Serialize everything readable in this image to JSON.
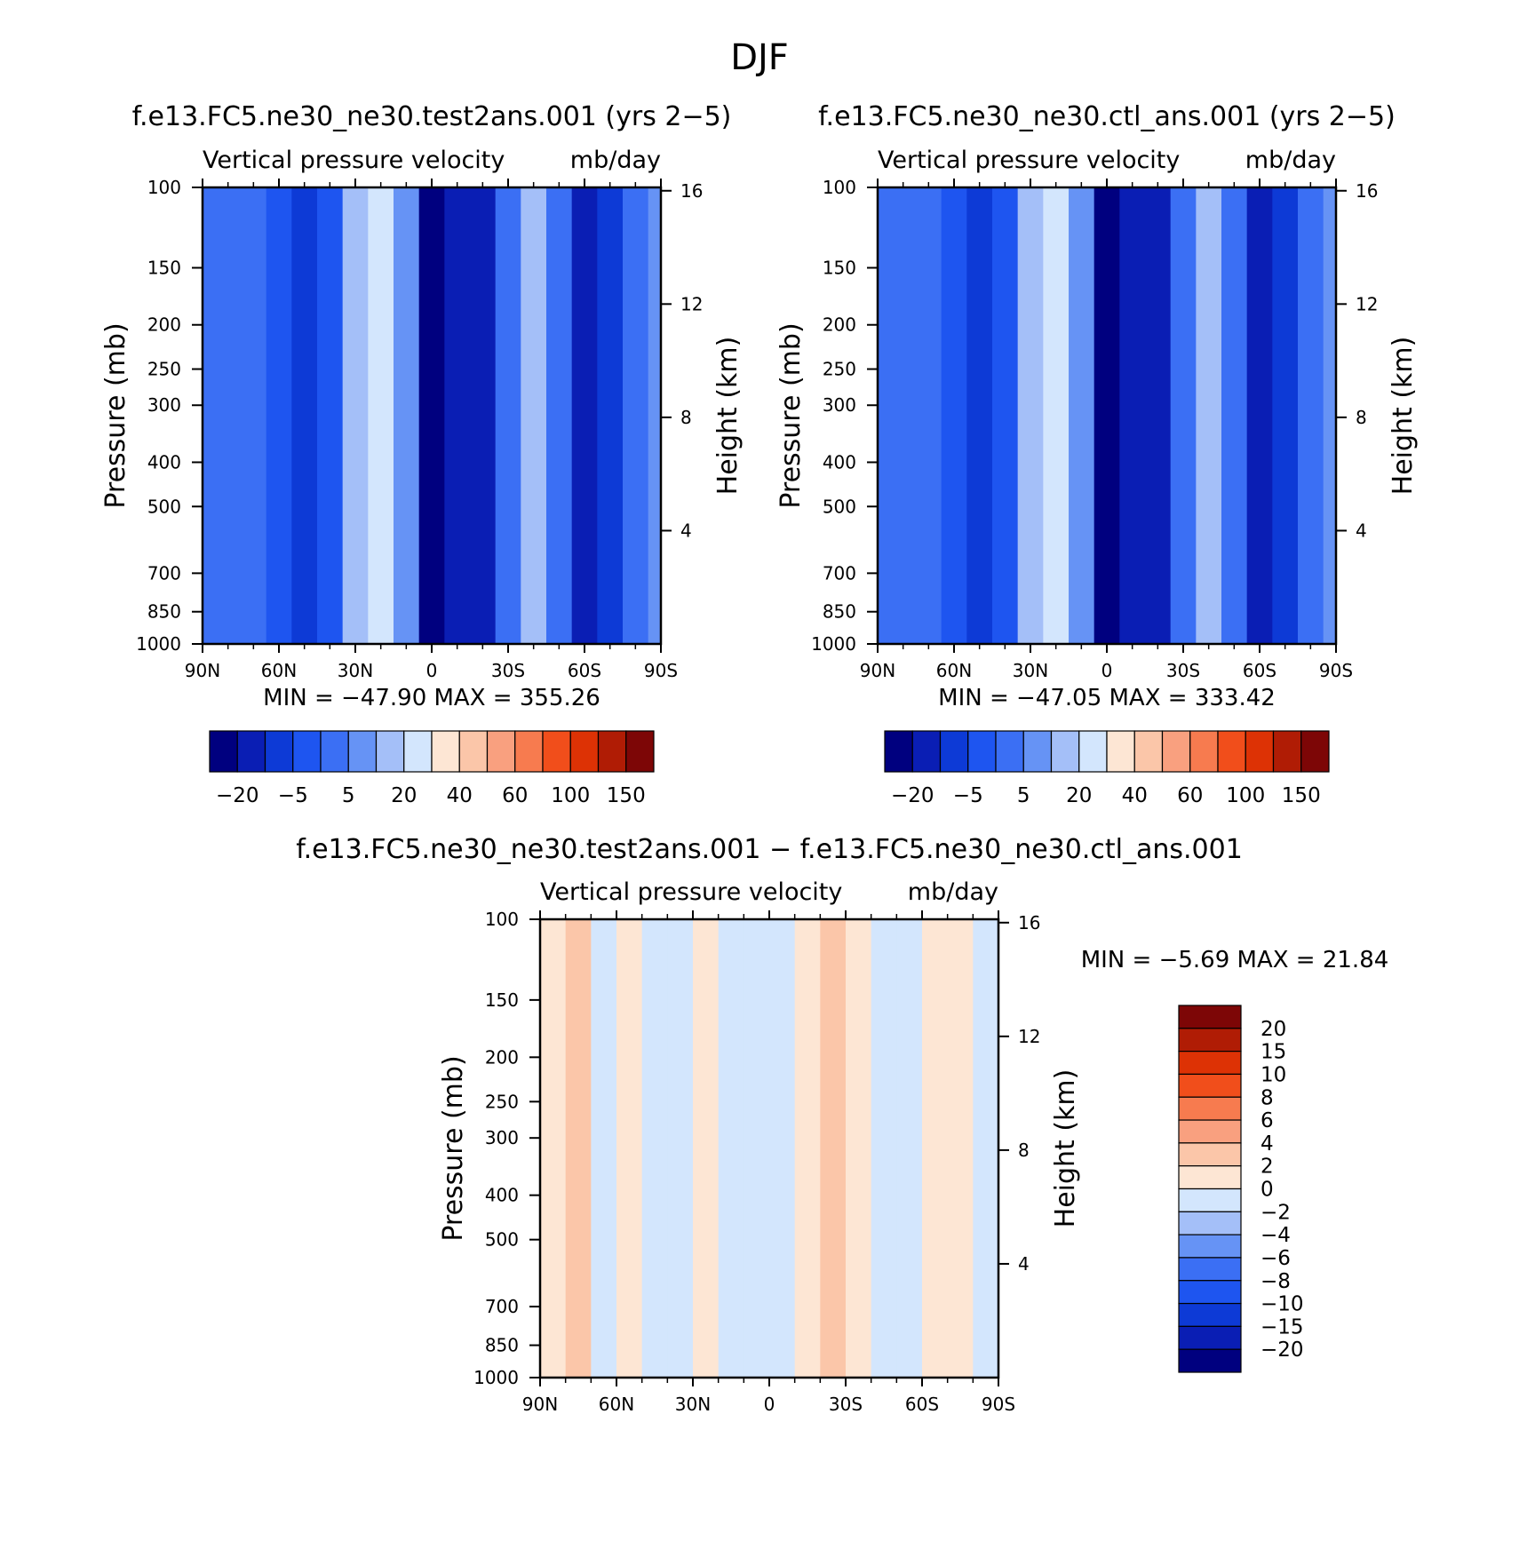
{
  "figure": {
    "title": "DJF"
  },
  "colors": {
    "abs_palette": [
      "#00007f",
      "#0a1eb4",
      "#0d3ad6",
      "#1e55f0",
      "#3b6ff4",
      "#6693f5",
      "#a4bff8",
      "#d3e6fd",
      "#fde6d4",
      "#fbc6a9",
      "#f9a07f",
      "#f77b4f",
      "#f14e1b",
      "#dd3205",
      "#b01c05",
      "#7d0606"
    ],
    "diff_palette": [
      "#7d0606",
      "#b01c05",
      "#dd3205",
      "#f14e1b",
      "#f77b4f",
      "#f9a07f",
      "#fbc6a9",
      "#fde6d4",
      "#d3e6fd",
      "#a4bff8",
      "#6693f5",
      "#3b6ff4",
      "#1e55f0",
      "#0d3ad6",
      "#0a1eb4",
      "#00007f"
    ]
  },
  "chart_data": [
    {
      "id": "test",
      "type": "heatmap",
      "title": "f.e13.FC5.ne30_ne30.test2ans.001 (yrs 2−5)",
      "subtitle_left": "Vertical pressure velocity",
      "subtitle_right": "mb/day",
      "ylabel": "Pressure (mb)",
      "y2label": "Height (km)",
      "x_ticks": [
        "90N",
        "60N",
        "30N",
        "0",
        "30S",
        "60S",
        "90S"
      ],
      "y_ticks": [
        "100",
        "150",
        "200",
        "250",
        "300",
        "400",
        "500",
        "700",
        "850",
        "1000"
      ],
      "y2_ticks": [
        "16",
        "12",
        "8",
        "4"
      ],
      "stats": "MIN =  −47.90   MAX =  355.26",
      "colorbar_labels": [
        "−20",
        "−5",
        "5",
        "20",
        "40",
        "60",
        "100",
        "150"
      ],
      "bands": [
        {
          "lat": 90,
          "level": 4
        },
        {
          "lat": 75,
          "level": 4
        },
        {
          "lat": 65,
          "level": 3
        },
        {
          "lat": 55,
          "level": 2
        },
        {
          "lat": 45,
          "level": 3
        },
        {
          "lat": 35,
          "level": 6
        },
        {
          "lat": 25,
          "level": 7
        },
        {
          "lat": 15,
          "level": 5
        },
        {
          "lat": 5,
          "level": 0
        },
        {
          "lat": -5,
          "level": 1
        },
        {
          "lat": -15,
          "level": 1
        },
        {
          "lat": -25,
          "level": 4
        },
        {
          "lat": -35,
          "level": 6
        },
        {
          "lat": -45,
          "level": 4
        },
        {
          "lat": -55,
          "level": 1
        },
        {
          "lat": -65,
          "level": 2
        },
        {
          "lat": -75,
          "level": 4
        },
        {
          "lat": -85,
          "level": 5
        }
      ]
    },
    {
      "id": "ctl",
      "type": "heatmap",
      "title": "f.e13.FC5.ne30_ne30.ctl_ans.001 (yrs 2−5)",
      "subtitle_left": "Vertical pressure velocity",
      "subtitle_right": "mb/day",
      "ylabel": "Pressure (mb)",
      "y2label": "Height (km)",
      "x_ticks": [
        "90N",
        "60N",
        "30N",
        "0",
        "30S",
        "60S",
        "90S"
      ],
      "y_ticks": [
        "100",
        "150",
        "200",
        "250",
        "300",
        "400",
        "500",
        "700",
        "850",
        "1000"
      ],
      "y2_ticks": [
        "16",
        "12",
        "8",
        "4"
      ],
      "stats": "MIN =  −47.05   MAX =  333.42",
      "colorbar_labels": [
        "−20",
        "−5",
        "5",
        "20",
        "40",
        "60",
        "100",
        "150"
      ],
      "bands": [
        {
          "lat": 90,
          "level": 4
        },
        {
          "lat": 75,
          "level": 4
        },
        {
          "lat": 65,
          "level": 3
        },
        {
          "lat": 55,
          "level": 2
        },
        {
          "lat": 45,
          "level": 3
        },
        {
          "lat": 35,
          "level": 6
        },
        {
          "lat": 25,
          "level": 7
        },
        {
          "lat": 15,
          "level": 5
        },
        {
          "lat": 5,
          "level": 0
        },
        {
          "lat": -5,
          "level": 1
        },
        {
          "lat": -15,
          "level": 1
        },
        {
          "lat": -25,
          "level": 4
        },
        {
          "lat": -35,
          "level": 6
        },
        {
          "lat": -45,
          "level": 4
        },
        {
          "lat": -55,
          "level": 1
        },
        {
          "lat": -65,
          "level": 2
        },
        {
          "lat": -75,
          "level": 4
        },
        {
          "lat": -85,
          "level": 5
        }
      ]
    },
    {
      "id": "diff",
      "type": "heatmap",
      "title": "f.e13.FC5.ne30_ne30.test2ans.001 − f.e13.FC5.ne30_ne30.ctl_ans.001",
      "subtitle_left": "Vertical pressure velocity",
      "subtitle_right": "mb/day",
      "ylabel": "Pressure (mb)",
      "y2label": "Height (km)",
      "x_ticks": [
        "90N",
        "60N",
        "30N",
        "0",
        "30S",
        "60S",
        "90S"
      ],
      "y_ticks": [
        "100",
        "150",
        "200",
        "250",
        "300",
        "400",
        "500",
        "700",
        "850",
        "1000"
      ],
      "y2_ticks": [
        "16",
        "12",
        "8",
        "4"
      ],
      "stats": "MIN =    −5.69   MAX =   21.84",
      "colorbar_labels": [
        "20",
        "15",
        "10",
        "8",
        "6",
        "4",
        "2",
        "0",
        "−2",
        "−4",
        "−6",
        "−8",
        "−10",
        "−15",
        "−20"
      ],
      "bands": [
        {
          "lat": 90,
          "level": 7
        },
        {
          "lat": 80,
          "level": 6
        },
        {
          "lat": 70,
          "level": 8
        },
        {
          "lat": 60,
          "level": 7
        },
        {
          "lat": 50,
          "level": 8
        },
        {
          "lat": 40,
          "level": 8
        },
        {
          "lat": 30,
          "level": 7
        },
        {
          "lat": 20,
          "level": 8
        },
        {
          "lat": 10,
          "level": 8
        },
        {
          "lat": 0,
          "level": 8
        },
        {
          "lat": -10,
          "level": 7
        },
        {
          "lat": -20,
          "level": 6
        },
        {
          "lat": -30,
          "level": 7
        },
        {
          "lat": -40,
          "level": 8
        },
        {
          "lat": -50,
          "level": 8
        },
        {
          "lat": -60,
          "level": 7
        },
        {
          "lat": -70,
          "level": 7
        },
        {
          "lat": -80,
          "level": 8
        }
      ]
    }
  ]
}
